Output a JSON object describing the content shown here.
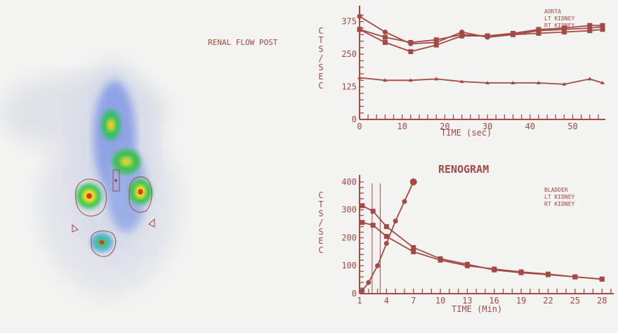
{
  "flow_title": "RENAL FLOW POST",
  "renogram_title": "RENOGRAM",
  "colors": {
    "trace": "#a34a44",
    "background": "#f3f3f1"
  },
  "chart_data": [
    {
      "type": "line",
      "ylabel": "CTS/SEC",
      "xlabel": "TIME (sec)",
      "xlim": [
        0,
        57
      ],
      "ylim": [
        0,
        420
      ],
      "xticks": [
        "0",
        "10",
        "20",
        "30",
        "40",
        "50"
      ],
      "yticks": [
        "0",
        "125",
        "250",
        "375"
      ],
      "legend": [
        "AORTA",
        "LT KIDNEY",
        "RT KIDNEY"
      ],
      "legend_position": "top-right",
      "series": [
        {
          "name": "AORTA",
          "x": [
            0,
            6,
            12,
            18,
            24,
            30,
            36,
            42,
            48,
            54,
            57
          ],
          "y": [
            395,
            335,
            290,
            295,
            335,
            315,
            325,
            340,
            345,
            350,
            355
          ]
        },
        {
          "name": "LT KIDNEY",
          "x": [
            0,
            6,
            12,
            18,
            24,
            30,
            36,
            42,
            48,
            54,
            57
          ],
          "y": [
            345,
            315,
            295,
            305,
            325,
            320,
            330,
            345,
            350,
            360,
            360
          ]
        },
        {
          "name": "RT KIDNEY",
          "x": [
            0,
            6,
            12,
            18,
            24,
            30,
            36,
            42,
            48,
            54,
            57
          ],
          "y": [
            345,
            295,
            260,
            285,
            320,
            320,
            325,
            330,
            335,
            340,
            345
          ]
        },
        {
          "name": "",
          "x": [
            0,
            6,
            12,
            18,
            24,
            30,
            36,
            42,
            48,
            54,
            57
          ],
          "y": [
            160,
            150,
            150,
            155,
            145,
            140,
            140,
            140,
            135,
            155,
            140
          ]
        }
      ]
    },
    {
      "type": "line",
      "title": "RENOGRAM",
      "ylabel": "CTS/SEC",
      "xlabel": "TIME (Min)",
      "xlim": [
        1,
        29
      ],
      "ylim": [
        0,
        410
      ],
      "xticks": [
        "1",
        "4",
        "7",
        "10",
        "13",
        "16",
        "19",
        "22",
        "25",
        "28"
      ],
      "yticks": [
        "0",
        "100",
        "200",
        "300",
        "400"
      ],
      "legend": [
        "BLADDER",
        "LT KIDNEY",
        "RT KIDNEY"
      ],
      "legend_position": "top-right",
      "series": [
        {
          "name": "BLADDER",
          "x": [
            1.3,
            2,
            3,
            4,
            5,
            6,
            7
          ],
          "y": [
            10,
            40,
            100,
            180,
            260,
            330,
            400
          ]
        },
        {
          "name": "LT KIDNEY",
          "x": [
            1.3,
            2.5,
            4,
            7,
            10,
            13,
            16,
            19,
            22,
            25,
            28
          ],
          "y": [
            315,
            295,
            240,
            165,
            125,
            105,
            85,
            75,
            68,
            60,
            52
          ]
        },
        {
          "name": "RT KIDNEY",
          "x": [
            1.3,
            2.5,
            4,
            7,
            10,
            13,
            16,
            19,
            22,
            25,
            28
          ],
          "y": [
            255,
            245,
            205,
            150,
            120,
            100,
            88,
            78,
            70,
            60,
            52
          ]
        }
      ],
      "markers": [
        2.4,
        3.3
      ]
    }
  ]
}
